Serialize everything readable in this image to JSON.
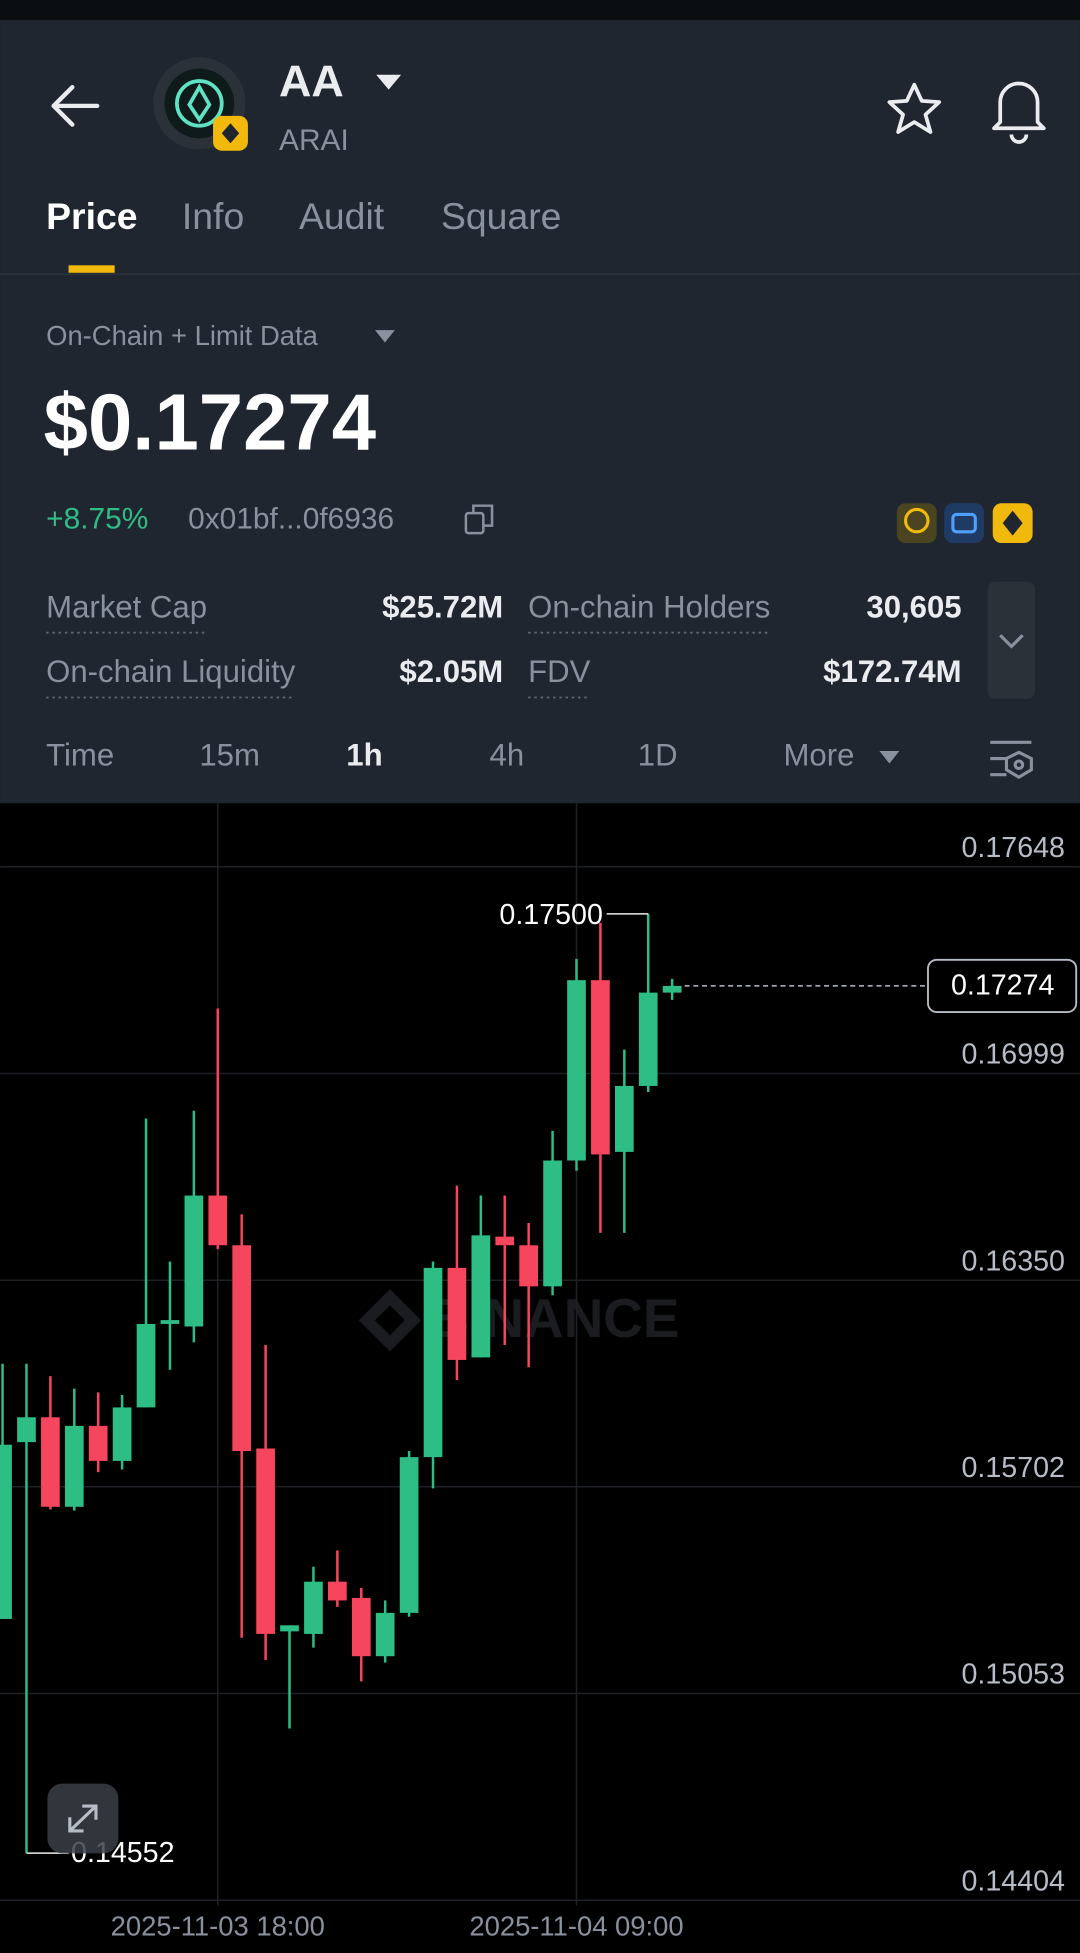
{
  "header": {
    "symbol": "AA",
    "name": "ARAI"
  },
  "tabs": [
    "Price",
    "Info",
    "Audit",
    "Square"
  ],
  "price_panel": {
    "source": "On-Chain + Limit Data",
    "price": "$0.17274",
    "change": "+8.75%",
    "address": "0x01bf...0f6936",
    "stats": [
      {
        "label": "Market Cap",
        "value": "$25.72M"
      },
      {
        "label": "On-chain Holders",
        "value": "30,605"
      },
      {
        "label": "On-chain Liquidity",
        "value": "$2.05M"
      },
      {
        "label": "FDV",
        "value": "$172.74M"
      }
    ]
  },
  "intervals": [
    "Time",
    "15m",
    "1h",
    "4h",
    "1D",
    "More"
  ],
  "chart_data": {
    "type": "candlestick",
    "watermark": "BINANCE",
    "categories": [
      null,
      null,
      null,
      null,
      null,
      null,
      null,
      null,
      null,
      "2025-11-03 18:00",
      null,
      null,
      null,
      null,
      null,
      null,
      null,
      null,
      null,
      null,
      null,
      null,
      null,
      null,
      "2025-11-04 09:00",
      null,
      null,
      null,
      null
    ],
    "open": [
      0.15287,
      0.15842,
      0.1592,
      0.15639,
      0.15893,
      0.15783,
      0.15951,
      0.16213,
      0.16205,
      0.16616,
      0.1646,
      0.15822,
      0.15248,
      0.1524,
      0.15404,
      0.15353,
      0.1517,
      0.15306,
      0.15795,
      0.16389,
      0.16108,
      0.16487,
      0.1646,
      0.16331,
      0.16726,
      0.17292,
      0.16753,
      0.1696,
      0.17253
    ],
    "high": [
      0.16088,
      0.16088,
      0.16049,
      0.1601,
      0.15998,
      0.1599,
      0.16858,
      0.16409,
      0.16882,
      0.17203,
      0.16557,
      0.16147,
      0.15267,
      0.15451,
      0.15502,
      0.15384,
      0.15345,
      0.15814,
      0.16409,
      0.16647,
      0.16616,
      0.16616,
      0.1653,
      0.16819,
      0.17359,
      0.17472,
      0.17074,
      0.175,
      0.17296
    ],
    "low": [
      0.15287,
      0.14552,
      0.15631,
      0.15627,
      0.15748,
      0.15756,
      0.15951,
      0.16069,
      0.16155,
      0.16448,
      0.15228,
      0.15158,
      0.14943,
      0.15197,
      0.15325,
      0.15091,
      0.1515,
      0.15294,
      0.15697,
      0.16037,
      0.16108,
      0.16147,
      0.16077,
      0.16303,
      0.16694,
      0.16499,
      0.16499,
      0.16941,
      0.1723
    ],
    "close": [
      0.15834,
      0.1592,
      0.15639,
      0.15893,
      0.15783,
      0.15951,
      0.16213,
      0.16225,
      0.16616,
      0.1646,
      0.15814,
      0.1524,
      0.15267,
      0.15404,
      0.15345,
      0.1517,
      0.15306,
      0.15795,
      0.16389,
      0.161,
      0.16491,
      0.1646,
      0.16331,
      0.16726,
      0.17292,
      0.16745,
      0.1696,
      0.17253,
      0.17274
    ],
    "up_color": "#2ebd85",
    "down_color": "#f6465d",
    "ylim": [
      0.14387,
      0.17847
    ],
    "yticks": [
      0.17648,
      0.16999,
      {
        "value": 0.1635,
        "label": "0.16350"
      },
      0.15702,
      0.15053,
      0.14404
    ],
    "grid": true,
    "high_mark": {
      "value": 0.175,
      "label": "0.17500"
    },
    "low_mark": {
      "value": 0.14552,
      "label": "0.14552"
    },
    "last_price": {
      "value": 0.17274,
      "label": "0.17274"
    }
  }
}
